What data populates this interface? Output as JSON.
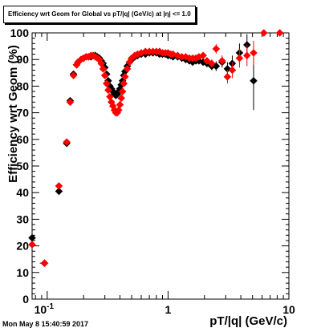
{
  "chart_data": {
    "type": "scatter",
    "title": "Efficiency wrt Geom for Global vs pT/|q| (GeV/c) at |η| <= 1.0",
    "xlabel": "pT/|q| (GeV/c)",
    "ylabel": "Efficiency wrt Geom (%)",
    "xscale": "log",
    "xlim": [
      0.075,
      10
    ],
    "ylim": [
      0,
      100
    ],
    "x_tick_labels": [
      "10^-1",
      "1",
      "10"
    ],
    "y_tick_labels": [
      "0",
      "10",
      "20",
      "30",
      "40",
      "50",
      "60",
      "70",
      "80",
      "90",
      "100"
    ],
    "grid": false,
    "legend": "none",
    "series": [
      {
        "color": "#000000",
        "marker": "diamond",
        "points": [
          {
            "x": 0.075,
            "y": 23,
            "err": 0.8,
            "xerr": [
              0.002,
              0.002
            ]
          },
          {
            "x": 0.095,
            "y": 13.5,
            "err": 0.8,
            "xerr": [
              0.008,
              0.006
            ]
          },
          {
            "x": 0.125,
            "y": 40.5,
            "err": 0.8,
            "xerr": [
              0.005,
              0.005
            ]
          },
          {
            "x": 0.145,
            "y": 58.5
          },
          {
            "x": 0.155,
            "y": 74.5
          },
          {
            "x": 0.165,
            "y": 84.5
          },
          {
            "x": 0.175,
            "y": 88
          },
          {
            "x": 0.18,
            "y": 89
          },
          {
            "x": 0.19,
            "y": 90
          },
          {
            "x": 0.2,
            "y": 90.5
          },
          {
            "x": 0.21,
            "y": 91
          },
          {
            "x": 0.22,
            "y": 91
          },
          {
            "x": 0.23,
            "y": 91
          },
          {
            "x": 0.24,
            "y": 91.5
          },
          {
            "x": 0.25,
            "y": 91.5
          },
          {
            "x": 0.26,
            "y": 91
          },
          {
            "x": 0.27,
            "y": 90.5
          },
          {
            "x": 0.28,
            "y": 89.5
          },
          {
            "x": 0.29,
            "y": 88.5
          },
          {
            "x": 0.3,
            "y": 87
          },
          {
            "x": 0.31,
            "y": 84.5
          },
          {
            "x": 0.32,
            "y": 82
          },
          {
            "x": 0.33,
            "y": 80
          },
          {
            "x": 0.34,
            "y": 79
          },
          {
            "x": 0.35,
            "y": 78
          },
          {
            "x": 0.36,
            "y": 77
          },
          {
            "x": 0.37,
            "y": 76.5
          },
          {
            "x": 0.38,
            "y": 77
          },
          {
            "x": 0.39,
            "y": 78
          },
          {
            "x": 0.4,
            "y": 79
          },
          {
            "x": 0.41,
            "y": 80.5
          },
          {
            "x": 0.42,
            "y": 82
          },
          {
            "x": 0.43,
            "y": 84
          },
          {
            "x": 0.44,
            "y": 85.5
          },
          {
            "x": 0.46,
            "y": 87.5
          },
          {
            "x": 0.48,
            "y": 89
          },
          {
            "x": 0.5,
            "y": 90
          },
          {
            "x": 0.53,
            "y": 91
          },
          {
            "x": 0.56,
            "y": 91.5
          },
          {
            "x": 0.6,
            "y": 92
          },
          {
            "x": 0.65,
            "y": 92
          },
          {
            "x": 0.7,
            "y": 92.5
          },
          {
            "x": 0.75,
            "y": 92.5
          },
          {
            "x": 0.8,
            "y": 92.5
          },
          {
            "x": 0.85,
            "y": 92
          },
          {
            "x": 0.9,
            "y": 92
          },
          {
            "x": 0.95,
            "y": 92
          },
          {
            "x": 1.0,
            "y": 91.5
          },
          {
            "x": 1.05,
            "y": 91.5
          },
          {
            "x": 1.1,
            "y": 91
          },
          {
            "x": 1.2,
            "y": 91
          },
          {
            "x": 1.3,
            "y": 90.5
          },
          {
            "x": 1.4,
            "y": 90
          },
          {
            "x": 1.5,
            "y": 89.5
          },
          {
            "x": 1.6,
            "y": 89
          },
          {
            "x": 1.7,
            "y": 89.5
          },
          {
            "x": 1.8,
            "y": 89.5
          },
          {
            "x": 1.95,
            "y": 89
          },
          {
            "x": 2.1,
            "y": 88.5
          },
          {
            "x": 2.3,
            "y": 87.5,
            "err": 1.5
          },
          {
            "x": 2.5,
            "y": 87.5,
            "err": 1.8
          },
          {
            "x": 2.8,
            "y": 89,
            "err": 2
          },
          {
            "x": 3.1,
            "y": 86.5,
            "err": 2.5
          },
          {
            "x": 3.4,
            "y": 88.5,
            "err": 3
          },
          {
            "x": 3.9,
            "y": 92.5,
            "err": 3.5
          },
          {
            "x": 4.5,
            "y": 95.5,
            "err": 4
          },
          {
            "x": 5.1,
            "y": 82,
            "err": 11
          }
        ]
      },
      {
        "color": "#ff0000",
        "marker": "diamond",
        "points": [
          {
            "x": 0.075,
            "y": 20.5,
            "err": 0.8,
            "xerr": [
              0.002,
              0.002
            ]
          },
          {
            "x": 0.095,
            "y": 13.5,
            "err": 0.8,
            "xerr": [
              0.008,
              0.006
            ]
          },
          {
            "x": 0.125,
            "y": 42.5,
            "err": 0.8,
            "xerr": [
              0.005,
              0.005
            ]
          },
          {
            "x": 0.145,
            "y": 59
          },
          {
            "x": 0.155,
            "y": 74
          },
          {
            "x": 0.165,
            "y": 84
          },
          {
            "x": 0.175,
            "y": 88
          },
          {
            "x": 0.18,
            "y": 89
          },
          {
            "x": 0.19,
            "y": 90
          },
          {
            "x": 0.2,
            "y": 90.5
          },
          {
            "x": 0.21,
            "y": 91
          },
          {
            "x": 0.22,
            "y": 91
          },
          {
            "x": 0.23,
            "y": 91.5
          },
          {
            "x": 0.24,
            "y": 91.5
          },
          {
            "x": 0.25,
            "y": 91
          },
          {
            "x": 0.26,
            "y": 90.5
          },
          {
            "x": 0.27,
            "y": 90
          },
          {
            "x": 0.28,
            "y": 88.5
          },
          {
            "x": 0.29,
            "y": 86.5
          },
          {
            "x": 0.3,
            "y": 84
          },
          {
            "x": 0.31,
            "y": 81
          },
          {
            "x": 0.32,
            "y": 78.5
          },
          {
            "x": 0.33,
            "y": 76
          },
          {
            "x": 0.34,
            "y": 74
          },
          {
            "x": 0.35,
            "y": 72.5
          },
          {
            "x": 0.36,
            "y": 71
          },
          {
            "x": 0.37,
            "y": 70
          },
          {
            "x": 0.38,
            "y": 70
          },
          {
            "x": 0.39,
            "y": 71
          },
          {
            "x": 0.4,
            "y": 73
          },
          {
            "x": 0.41,
            "y": 75.5
          },
          {
            "x": 0.42,
            "y": 78
          },
          {
            "x": 0.43,
            "y": 81
          },
          {
            "x": 0.44,
            "y": 83.5
          },
          {
            "x": 0.46,
            "y": 86.5
          },
          {
            "x": 0.48,
            "y": 89
          },
          {
            "x": 0.5,
            "y": 90.5
          },
          {
            "x": 0.53,
            "y": 91.5
          },
          {
            "x": 0.56,
            "y": 92
          },
          {
            "x": 0.6,
            "y": 92.5
          },
          {
            "x": 0.65,
            "y": 93
          },
          {
            "x": 0.7,
            "y": 93
          },
          {
            "x": 0.75,
            "y": 93
          },
          {
            "x": 0.8,
            "y": 93
          },
          {
            "x": 0.85,
            "y": 93
          },
          {
            "x": 0.9,
            "y": 92.5
          },
          {
            "x": 0.95,
            "y": 92.5
          },
          {
            "x": 1.0,
            "y": 92.5
          },
          {
            "x": 1.05,
            "y": 92
          },
          {
            "x": 1.1,
            "y": 92
          },
          {
            "x": 1.2,
            "y": 91.5
          },
          {
            "x": 1.3,
            "y": 91
          },
          {
            "x": 1.4,
            "y": 91
          },
          {
            "x": 1.5,
            "y": 90.5
          },
          {
            "x": 1.6,
            "y": 90.5
          },
          {
            "x": 1.7,
            "y": 90.5
          },
          {
            "x": 1.8,
            "y": 91
          },
          {
            "x": 1.95,
            "y": 91.5
          },
          {
            "x": 2.1,
            "y": 89.5
          },
          {
            "x": 2.3,
            "y": 88.5,
            "err": 1.5
          },
          {
            "x": 2.5,
            "y": 94,
            "err": 1.8
          },
          {
            "x": 2.8,
            "y": 89.5,
            "err": 2
          },
          {
            "x": 3.1,
            "y": 83.5,
            "err": 2.5
          },
          {
            "x": 3.4,
            "y": 86,
            "err": 3
          },
          {
            "x": 3.9,
            "y": 90.5,
            "err": 3.5
          },
          {
            "x": 4.5,
            "y": 91.5,
            "err": 4
          },
          {
            "x": 5.1,
            "y": 92.5,
            "err": 4.5
          },
          {
            "x": 6.2,
            "y": 100
          },
          {
            "x": 8.4,
            "y": 100
          }
        ]
      }
    ]
  },
  "footer": {
    "timestamp": "Mon May  8 15:40:59 2017"
  }
}
